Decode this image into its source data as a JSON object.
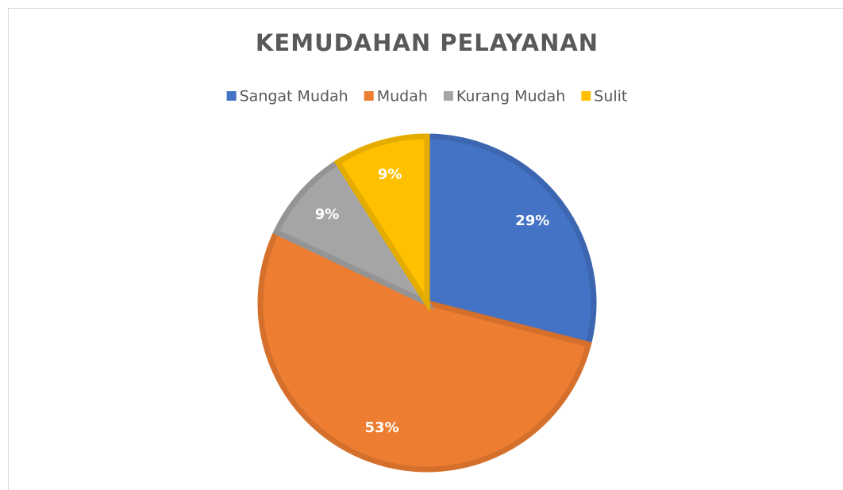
{
  "chart_data": {
    "type": "pie",
    "title": "KEMUDAHAN PELAYANAN",
    "categories": [
      "Sangat Mudah",
      "Mudah",
      "Kurang Mudah",
      "Sulit"
    ],
    "values": [
      29,
      53,
      9,
      9
    ],
    "value_labels": [
      "29%",
      "53%",
      "9%",
      "9%"
    ],
    "colors": [
      "#4472c4",
      "#ed7d31",
      "#a5a5a5",
      "#ffc000"
    ],
    "legend": "top"
  }
}
